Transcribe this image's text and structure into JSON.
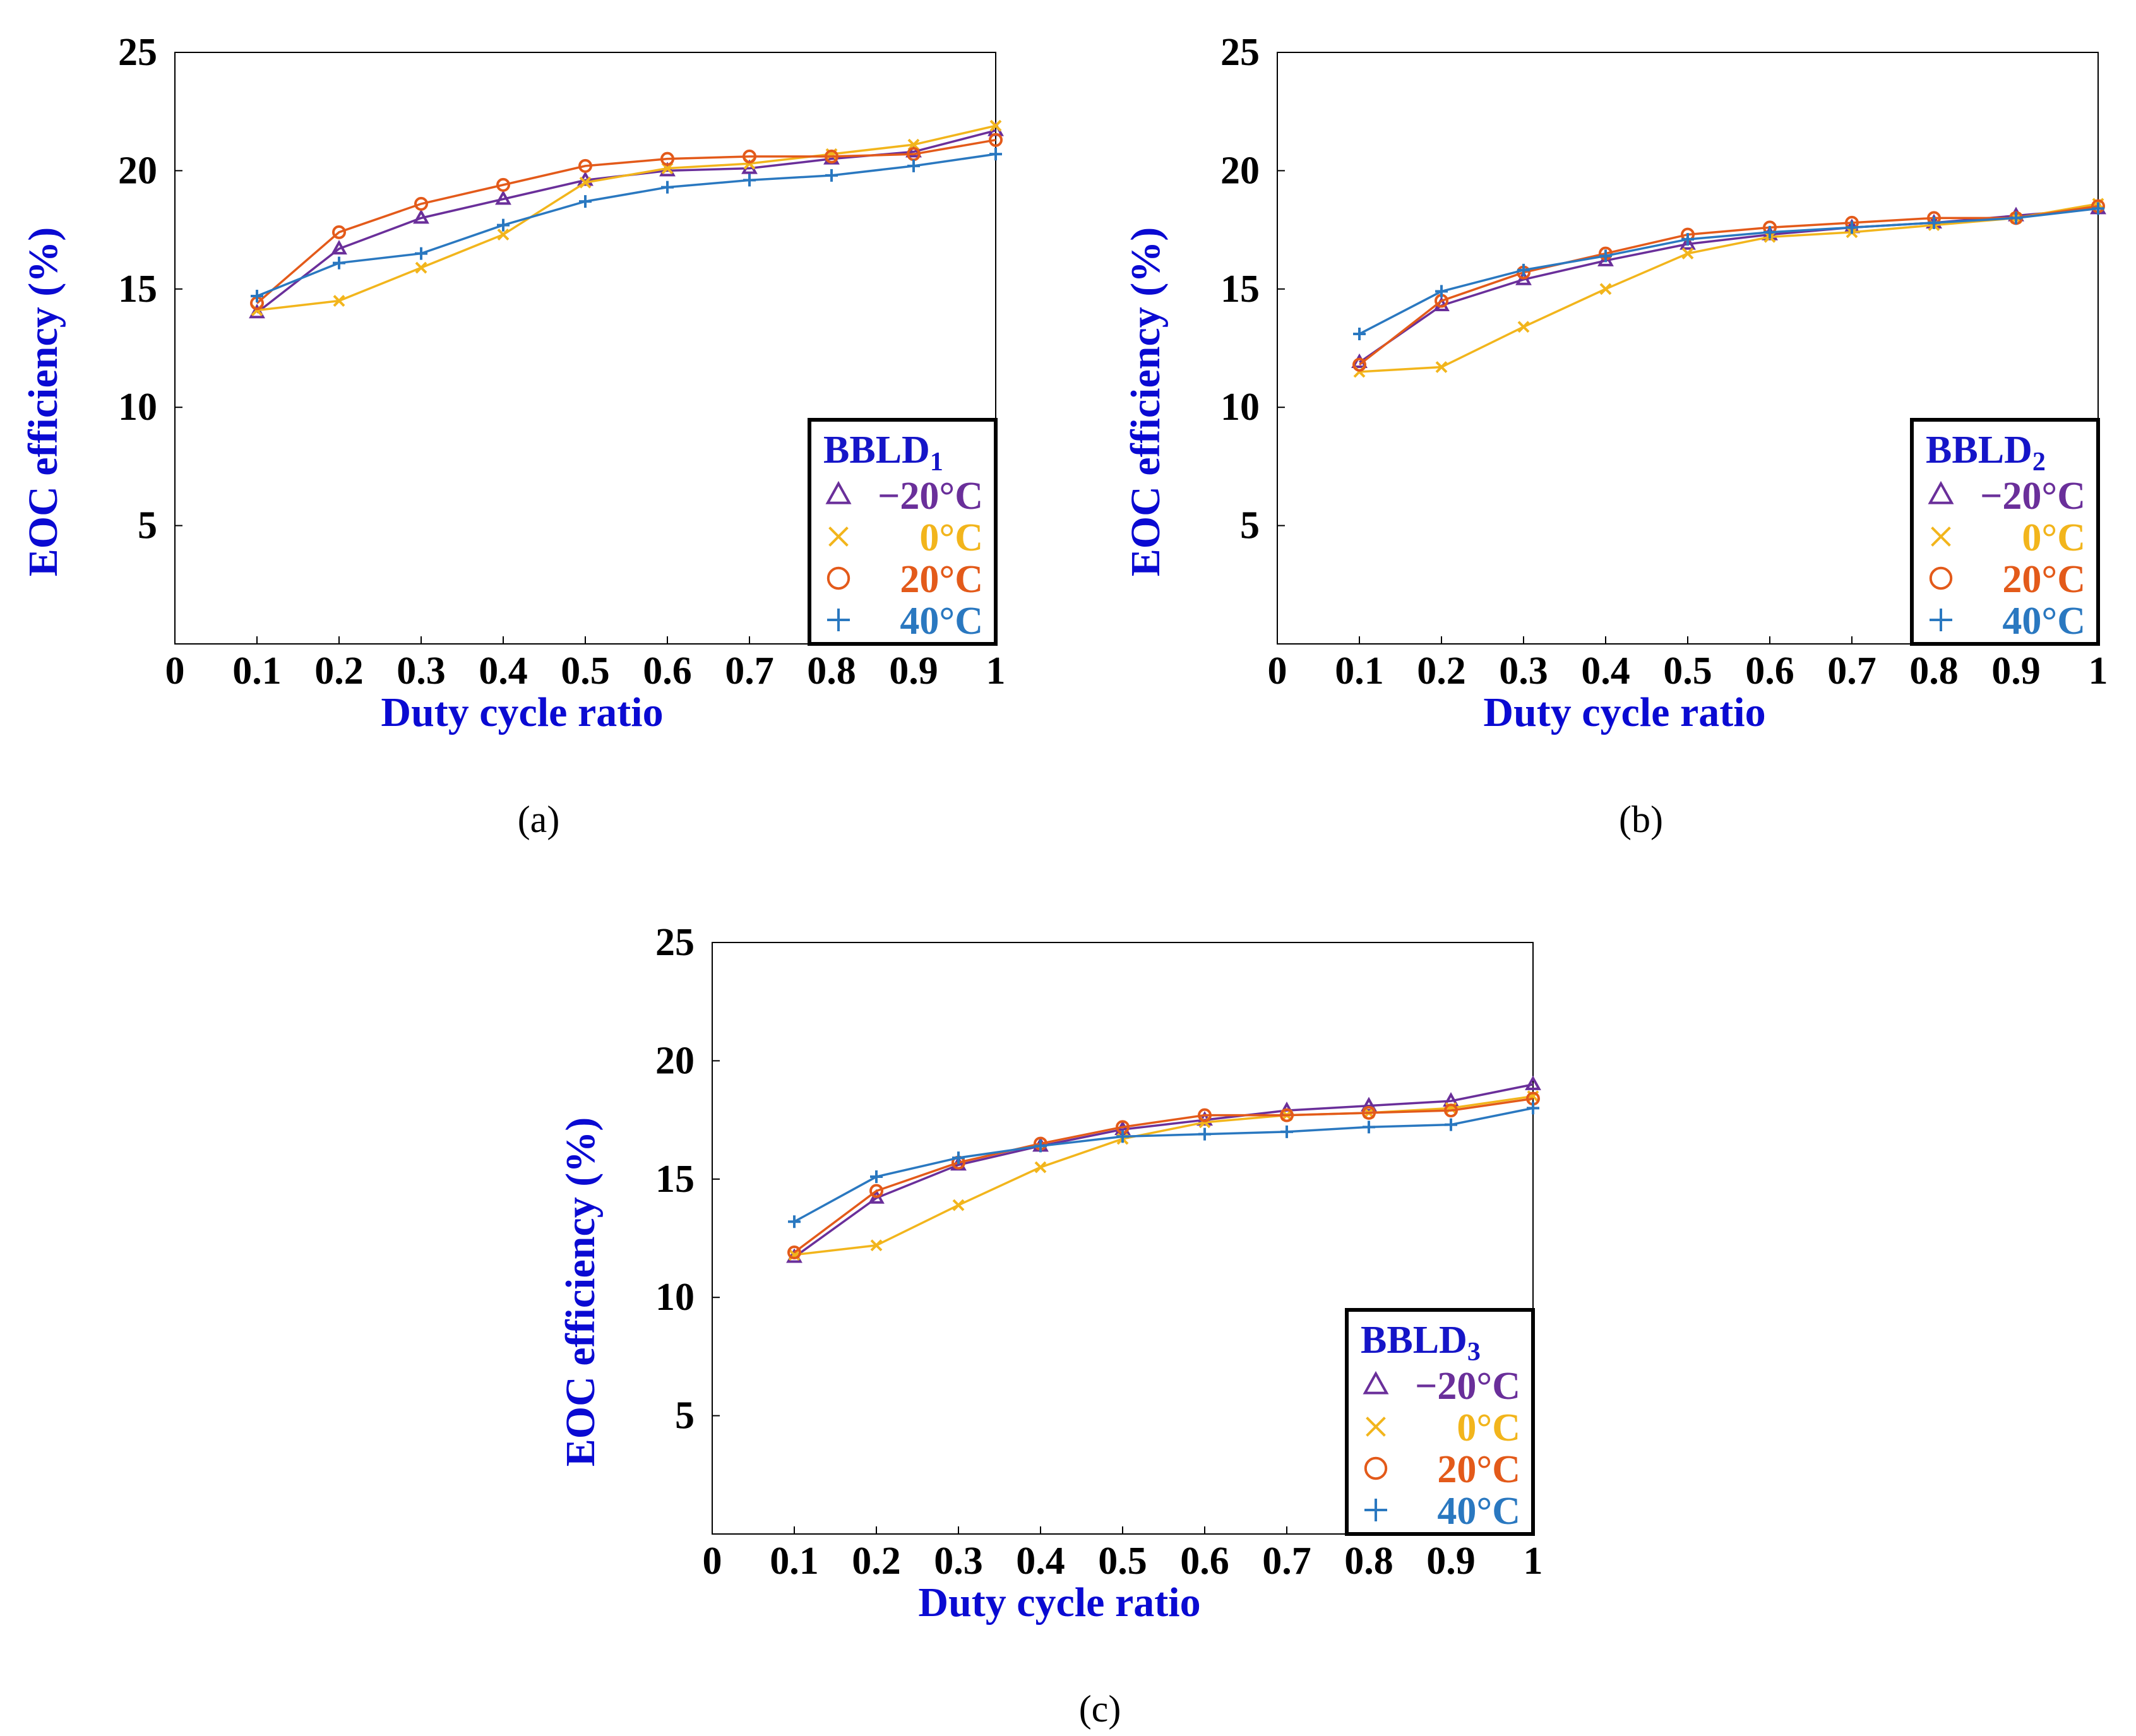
{
  "colors": {
    "axis_label": "#0a0ad2",
    "legend_title": "#1515c8",
    "series": [
      "#6a2f9a",
      "#f2b51c",
      "#e35a1a",
      "#2a78c0"
    ]
  },
  "chart_data": [
    {
      "type": "line",
      "caption": "(a)",
      "xlabel": "Duty cycle ratio",
      "ylabel": "EOC efficiency (%)",
      "xlim": [
        0,
        1
      ],
      "ylim": [
        0,
        25
      ],
      "x_ticks": [
        "0",
        "0.1",
        "0.2",
        "0.3",
        "0.4",
        "0.5",
        "0.6",
        "0.7",
        "0.8",
        "0.9",
        "1"
      ],
      "y_ticks": [
        "5",
        "10",
        "15",
        "20",
        "25"
      ],
      "legend": {
        "title": "BBLD",
        "subscript": "1",
        "location": "lower-right"
      },
      "x": [
        0.1,
        0.2,
        0.3,
        0.4,
        0.5,
        0.6,
        0.7,
        0.8,
        0.9,
        1.0
      ],
      "series": [
        {
          "name": "−20°C",
          "marker": "triangle",
          "values": [
            14.0,
            16.7,
            18.0,
            18.8,
            19.6,
            20.0,
            20.1,
            20.5,
            20.8,
            21.7
          ]
        },
        {
          "name": "0°C",
          "marker": "x",
          "values": [
            14.1,
            14.5,
            15.9,
            17.3,
            19.5,
            20.1,
            20.3,
            20.7,
            21.1,
            21.9
          ]
        },
        {
          "name": "20°C",
          "marker": "circle",
          "values": [
            14.4,
            17.4,
            18.6,
            19.4,
            20.2,
            20.5,
            20.6,
            20.6,
            20.7,
            21.3
          ]
        },
        {
          "name": "40°C",
          "marker": "plus",
          "values": [
            14.7,
            16.1,
            16.5,
            17.7,
            18.7,
            19.3,
            19.6,
            19.8,
            20.2,
            20.7
          ]
        }
      ]
    },
    {
      "type": "line",
      "caption": "(b)",
      "xlabel": "Duty cycle ratio",
      "ylabel": "EOC efficiency (%)",
      "xlim": [
        0,
        1
      ],
      "ylim": [
        0,
        25
      ],
      "x_ticks": [
        "0",
        "0.1",
        "0.2",
        "0.3",
        "0.4",
        "0.5",
        "0.6",
        "0.7",
        "0.8",
        "0.9",
        "1"
      ],
      "y_ticks": [
        "5",
        "10",
        "15",
        "20",
        "25"
      ],
      "legend": {
        "title": "BBLD",
        "subscript": "2",
        "location": "lower-right"
      },
      "x": [
        0.1,
        0.2,
        0.3,
        0.4,
        0.5,
        0.6,
        0.7,
        0.8,
        0.9,
        1.0
      ],
      "series": [
        {
          "name": "−20°C",
          "marker": "triangle",
          "values": [
            11.9,
            14.3,
            15.4,
            16.2,
            16.9,
            17.3,
            17.6,
            17.8,
            18.1,
            18.4
          ]
        },
        {
          "name": "0°C",
          "marker": "x",
          "values": [
            11.5,
            11.7,
            13.4,
            15.0,
            16.5,
            17.2,
            17.4,
            17.7,
            18.0,
            18.6
          ]
        },
        {
          "name": "20°C",
          "marker": "circle",
          "values": [
            11.8,
            14.5,
            15.7,
            16.5,
            17.3,
            17.6,
            17.8,
            18.0,
            18.0,
            18.5
          ]
        },
        {
          "name": "40°C",
          "marker": "plus",
          "values": [
            13.1,
            14.9,
            15.8,
            16.4,
            17.1,
            17.4,
            17.6,
            17.8,
            18.0,
            18.4
          ]
        }
      ]
    },
    {
      "type": "line",
      "caption": "(c)",
      "xlabel": "Duty cycle ratio",
      "ylabel": "EOC efficiency (%)",
      "xlim": [
        0,
        1
      ],
      "ylim": [
        0,
        25
      ],
      "x_ticks": [
        "0",
        "0.1",
        "0.2",
        "0.3",
        "0.4",
        "0.5",
        "0.6",
        "0.7",
        "0.8",
        "0.9",
        "1"
      ],
      "y_ticks": [
        "5",
        "10",
        "15",
        "20",
        "25"
      ],
      "legend": {
        "title": "BBLD",
        "subscript": "3",
        "location": "lower-right"
      },
      "x": [
        0.1,
        0.2,
        0.3,
        0.4,
        0.5,
        0.6,
        0.7,
        0.8,
        0.9,
        1.0
      ],
      "series": [
        {
          "name": "−20°C",
          "marker": "triangle",
          "values": [
            11.7,
            14.2,
            15.6,
            16.4,
            17.1,
            17.5,
            17.9,
            18.1,
            18.3,
            19.0
          ]
        },
        {
          "name": "0°C",
          "marker": "x",
          "values": [
            11.8,
            12.2,
            13.9,
            15.5,
            16.7,
            17.4,
            17.7,
            17.8,
            18.0,
            18.5
          ]
        },
        {
          "name": "20°C",
          "marker": "circle",
          "values": [
            11.9,
            14.5,
            15.7,
            16.5,
            17.2,
            17.7,
            17.7,
            17.8,
            17.9,
            18.4
          ]
        },
        {
          "name": "40°C",
          "marker": "plus",
          "values": [
            13.2,
            15.1,
            15.9,
            16.4,
            16.8,
            16.9,
            17.0,
            17.2,
            17.3,
            18.0
          ]
        }
      ]
    }
  ]
}
